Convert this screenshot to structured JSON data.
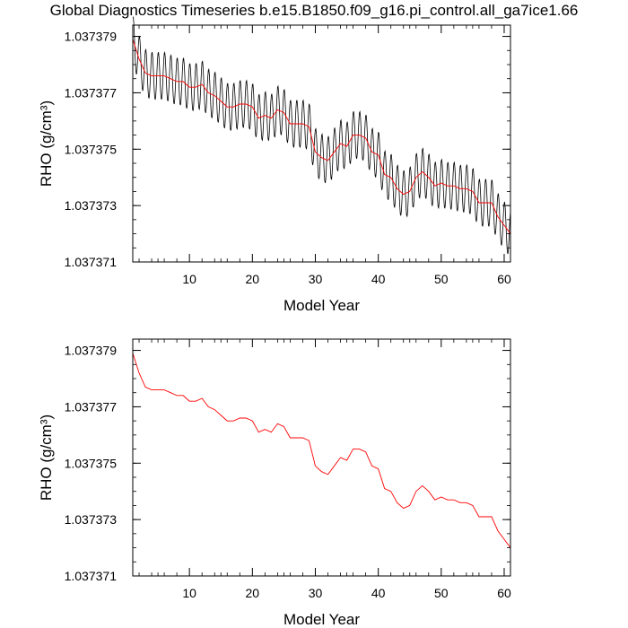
{
  "title": "Global Diagnostics Timeseries b.e15.B1850.f09_g16.pi_control.all_ga7ice1.66",
  "chart_data": [
    {
      "type": "line",
      "xlabel": "Model Year",
      "ylabel": "RHO (g/cm³)",
      "xlim": [
        1,
        61
      ],
      "ylim": [
        1.037371,
        1.0373794
      ],
      "xticks": [
        10,
        20,
        30,
        40,
        50,
        60
      ],
      "yticks": [
        1.037371,
        1.037373,
        1.037375,
        1.037377,
        1.037379
      ],
      "ytick_labels": [
        "1.037371",
        "1.037373",
        "1.037375",
        "1.037377",
        "1.037379"
      ],
      "series": [
        {
          "kind": "monthly",
          "color": "#000000",
          "x_start": 1,
          "x_step": 0.0833333,
          "annual_means": [
            1.0373789,
            1.0373782,
            1.0373777,
            1.0373776,
            1.0373776,
            1.0373776,
            1.0373775,
            1.0373774,
            1.0373774,
            1.0373772,
            1.0373772,
            1.0373773,
            1.037377,
            1.0373769,
            1.0373767,
            1.0373765,
            1.0373765,
            1.0373766,
            1.0373766,
            1.0373765,
            1.0373761,
            1.0373762,
            1.0373761,
            1.0373764,
            1.0373763,
            1.0373759,
            1.0373759,
            1.0373759,
            1.0373758,
            1.0373749,
            1.0373747,
            1.0373746,
            1.0373749,
            1.0373752,
            1.0373751,
            1.0373755,
            1.0373755,
            1.0373754,
            1.0373749,
            1.0373748,
            1.0373741,
            1.037374,
            1.0373736,
            1.0373734,
            1.0373735,
            1.037374,
            1.0373742,
            1.037374,
            1.0373737,
            1.0373738,
            1.0373737,
            1.0373737,
            1.0373736,
            1.0373736,
            1.0373735,
            1.0373731,
            1.0373731,
            1.0373731,
            1.0373726,
            1.0373723,
            1.037372
          ],
          "seasonal_amplitude": 8.5e-07
        },
        {
          "kind": "annual",
          "color": "#ff0000",
          "x": [
            1,
            2,
            3,
            4,
            5,
            6,
            7,
            8,
            9,
            10,
            11,
            12,
            13,
            14,
            15,
            16,
            17,
            18,
            19,
            20,
            21,
            22,
            23,
            24,
            25,
            26,
            27,
            28,
            29,
            30,
            31,
            32,
            33,
            34,
            35,
            36,
            37,
            38,
            39,
            40,
            41,
            42,
            43,
            44,
            45,
            46,
            47,
            48,
            49,
            50,
            51,
            52,
            53,
            54,
            55,
            56,
            57,
            58,
            59,
            60,
            61
          ],
          "y": [
            1.0373789,
            1.0373782,
            1.0373777,
            1.0373776,
            1.0373776,
            1.0373776,
            1.0373775,
            1.0373774,
            1.0373774,
            1.0373772,
            1.0373772,
            1.0373773,
            1.037377,
            1.0373769,
            1.0373767,
            1.0373765,
            1.0373765,
            1.0373766,
            1.0373766,
            1.0373765,
            1.0373761,
            1.0373762,
            1.0373761,
            1.0373764,
            1.0373763,
            1.0373759,
            1.0373759,
            1.0373759,
            1.0373758,
            1.0373749,
            1.0373747,
            1.0373746,
            1.0373749,
            1.0373752,
            1.0373751,
            1.0373755,
            1.0373755,
            1.0373754,
            1.0373749,
            1.0373748,
            1.0373741,
            1.037374,
            1.0373736,
            1.0373734,
            1.0373735,
            1.037374,
            1.0373742,
            1.037374,
            1.0373737,
            1.0373738,
            1.0373737,
            1.0373737,
            1.0373736,
            1.0373736,
            1.0373735,
            1.0373731,
            1.0373731,
            1.0373731,
            1.0373726,
            1.0373723,
            1.037372
          ]
        }
      ]
    },
    {
      "type": "line",
      "xlabel": "Model Year",
      "ylabel": "RHO (g/cm³)",
      "xlim": [
        1,
        61
      ],
      "ylim": [
        1.037371,
        1.0373794
      ],
      "xticks": [
        10,
        20,
        30,
        40,
        50,
        60
      ],
      "yticks": [
        1.037371,
        1.037373,
        1.037375,
        1.037377,
        1.037379
      ],
      "ytick_labels": [
        "1.037371",
        "1.037373",
        "1.037375",
        "1.037377",
        "1.037379"
      ],
      "series": [
        {
          "kind": "annual",
          "color": "#ff0000",
          "x": [
            1,
            2,
            3,
            4,
            5,
            6,
            7,
            8,
            9,
            10,
            11,
            12,
            13,
            14,
            15,
            16,
            17,
            18,
            19,
            20,
            21,
            22,
            23,
            24,
            25,
            26,
            27,
            28,
            29,
            30,
            31,
            32,
            33,
            34,
            35,
            36,
            37,
            38,
            39,
            40,
            41,
            42,
            43,
            44,
            45,
            46,
            47,
            48,
            49,
            50,
            51,
            52,
            53,
            54,
            55,
            56,
            57,
            58,
            59,
            60,
            61
          ],
          "y": [
            1.0373789,
            1.0373782,
            1.0373777,
            1.0373776,
            1.0373776,
            1.0373776,
            1.0373775,
            1.0373774,
            1.0373774,
            1.0373772,
            1.0373772,
            1.0373773,
            1.037377,
            1.0373769,
            1.0373767,
            1.0373765,
            1.0373765,
            1.0373766,
            1.0373766,
            1.0373765,
            1.0373761,
            1.0373762,
            1.0373761,
            1.0373764,
            1.0373763,
            1.0373759,
            1.0373759,
            1.0373759,
            1.0373758,
            1.0373749,
            1.0373747,
            1.0373746,
            1.0373749,
            1.0373752,
            1.0373751,
            1.0373755,
            1.0373755,
            1.0373754,
            1.0373749,
            1.0373748,
            1.0373741,
            1.037374,
            1.0373736,
            1.0373734,
            1.0373735,
            1.037374,
            1.0373742,
            1.037374,
            1.0373737,
            1.0373738,
            1.0373737,
            1.0373737,
            1.0373736,
            1.0373736,
            1.0373735,
            1.0373731,
            1.0373731,
            1.0373731,
            1.0373726,
            1.0373723,
            1.037372
          ]
        }
      ]
    }
  ]
}
